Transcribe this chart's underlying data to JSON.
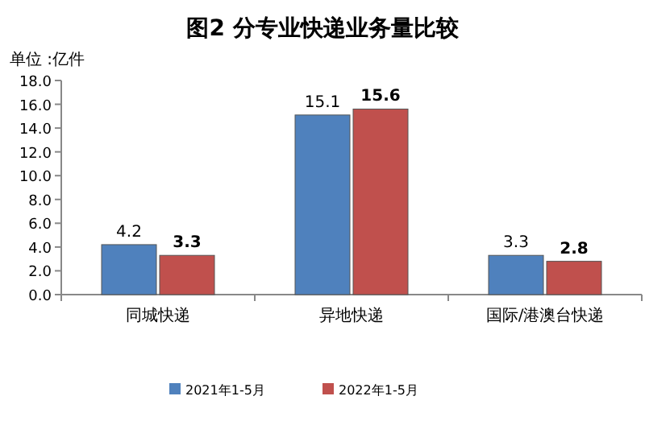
{
  "chart_data": {
    "type": "bar",
    "title": "图2 分专业快递业务量比较",
    "ylabel": "单位 :亿件",
    "categories": [
      "同城快递",
      "异地快递",
      "国际/港澳台快递"
    ],
    "series": [
      {
        "name": "2021年1-5月",
        "color": "#4f81bd",
        "values": [
          4.2,
          15.1,
          3.3
        ]
      },
      {
        "name": "2022年1-5月",
        "color": "#c0504d",
        "values": [
          3.3,
          15.6,
          2.8
        ]
      }
    ],
    "ylim": [
      0,
      18
    ],
    "yticks": [
      {
        "value": 0,
        "label": "0.0"
      },
      {
        "value": 2,
        "label": "2.0"
      },
      {
        "value": 4,
        "label": "4.0"
      },
      {
        "value": 6,
        "label": "6.0"
      },
      {
        "value": 8,
        "label": "8.0"
      },
      {
        "value": 10,
        "label": "10.0"
      },
      {
        "value": 12,
        "label": "12.0"
      },
      {
        "value": 14,
        "label": "14.0"
      },
      {
        "value": 16,
        "label": "16.0"
      },
      {
        "value": 18,
        "label": "18.0"
      }
    ],
    "data_labels": true,
    "legend": "bottom"
  }
}
